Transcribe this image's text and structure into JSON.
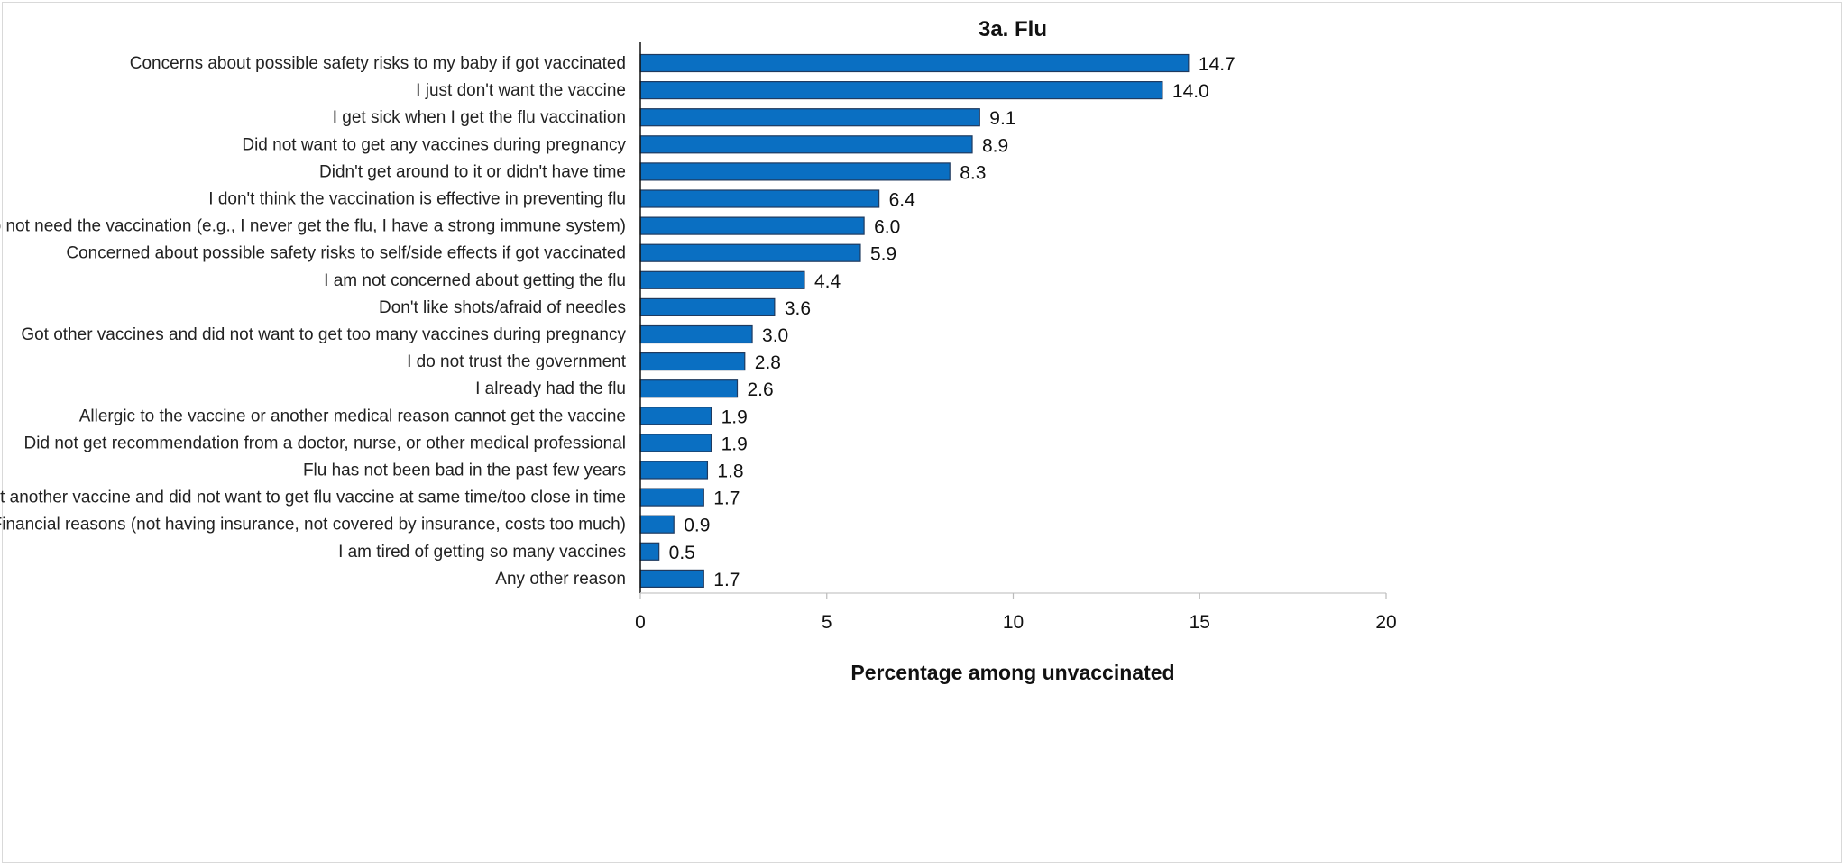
{
  "chart_data": {
    "type": "bar",
    "orientation": "horizontal",
    "title": "3a. Flu",
    "xlabel": "Percentage among unvaccinated",
    "ylabel": "",
    "xlim": [
      0,
      20
    ],
    "xticks": [
      0,
      5,
      10,
      15,
      20
    ],
    "grid": false,
    "bar_color": "#0a6fc2",
    "bar_edge_color": "#1f3a5f",
    "categories": [
      "Concerns about possible safety risks to my baby if got vaccinated",
      "I just don't want the vaccine",
      "I get sick when I get the flu vaccination",
      "Did not want to get any vaccines during pregnancy",
      "Didn't get around to it or didn't have time",
      "I don't think the vaccination is effective in preventing flu",
      "I do not need the vaccination (e.g., I never get the flu, I have a strong immune system)",
      "Concerned about possible safety risks to self/side effects if got vaccinated",
      "I am not concerned about getting the flu",
      "Don't like shots/afraid of needles",
      "Got other vaccines and did not want to get too many vaccines during pregnancy",
      "I do not trust the government",
      "I already had the flu",
      "Allergic to the vaccine or another medical reason cannot get the vaccine",
      "Did not get recommendation from a doctor, nurse, or other medical professional",
      "Flu has not been bad in the past few years",
      "Got another vaccine and did not want to get flu vaccine at same time/too close in time",
      "Financial reasons (not having insurance, not covered by insurance, costs too much)",
      "I am tired of getting so many vaccines",
      "Any other reason"
    ],
    "values": [
      14.7,
      14.0,
      9.1,
      8.9,
      8.3,
      6.4,
      6.0,
      5.9,
      4.4,
      3.6,
      3.0,
      2.8,
      2.6,
      1.9,
      1.9,
      1.8,
      1.7,
      0.9,
      0.5,
      1.7
    ],
    "value_labels": [
      "14.7",
      "14.0",
      "9.1",
      "8.9",
      "8.3",
      "6.4",
      "6.0",
      "5.9",
      "4.4",
      "3.6",
      "3.0",
      "2.8",
      "2.6",
      "1.9",
      "1.9",
      "1.8",
      "1.7",
      "0.9",
      "0.5",
      "1.7"
    ]
  }
}
